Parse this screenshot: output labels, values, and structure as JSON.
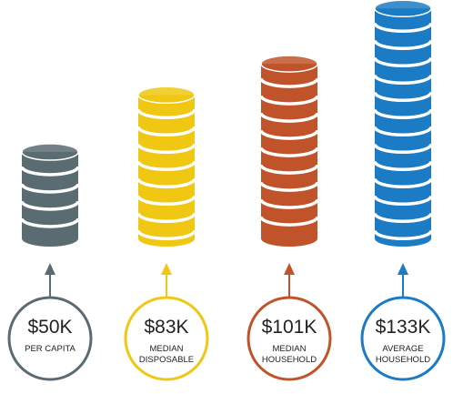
{
  "chart_data": {
    "type": "bar",
    "categories": [
      "PER CAPITA",
      "MEDIAN DISPOSABLE",
      "MEDIAN HOUSEHOLD",
      "AVERAGE HOUSEHOLD"
    ],
    "values": [
      50,
      83,
      101,
      133
    ],
    "value_labels": [
      "$50K",
      "$83K",
      "$101K",
      "$133K"
    ],
    "colors": [
      "#5b6b72",
      "#f0c712",
      "#c1532a",
      "#1b7bc4"
    ]
  }
}
